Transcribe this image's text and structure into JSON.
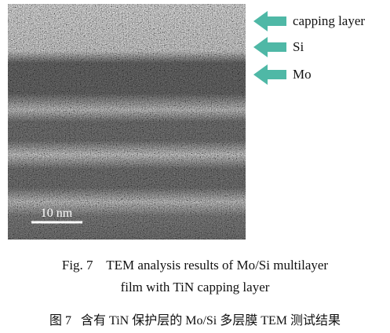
{
  "figure": {
    "scale_bar": "10 nm",
    "labels": [
      "capping layer",
      "Si",
      "Mo"
    ]
  },
  "caption": {
    "number_en": "Fig. 7",
    "title_en_line1": "TEM analysis results of Mo/Si multilayer",
    "title_en_line2": "film with TiN capping layer",
    "number_zh": "图 7",
    "title_zh": "含有 TiN 保护层的 Mo/Si 多层膜 TEM 测试结果"
  }
}
